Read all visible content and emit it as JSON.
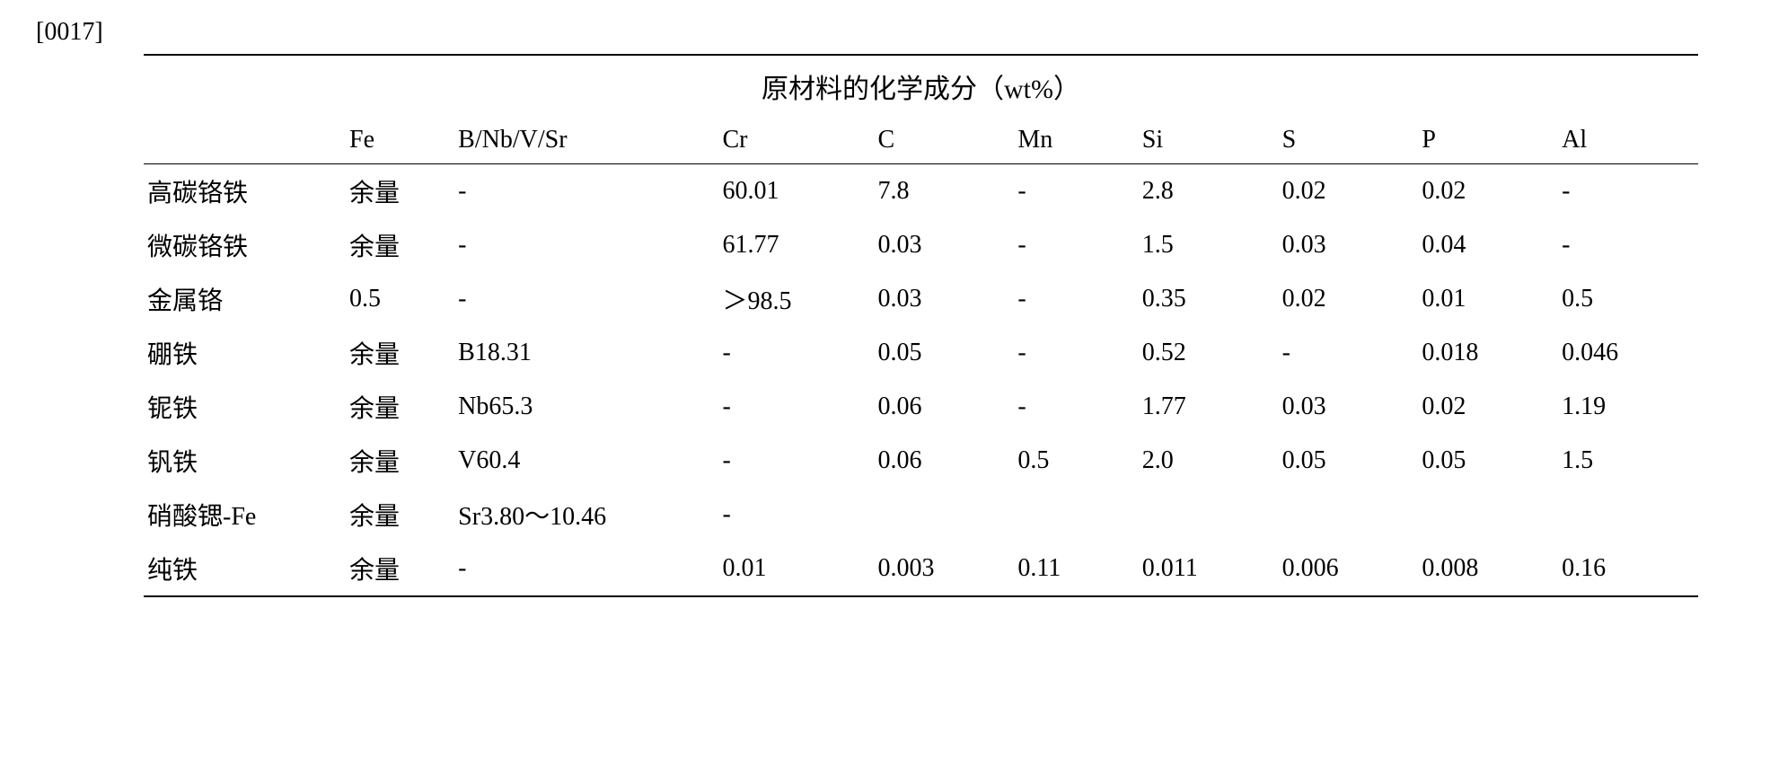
{
  "para_label": "[0017]",
  "table": {
    "title": "原材料的化学成分（wt%）",
    "headers": [
      "",
      "Fe",
      "B/Nb/V/Sr",
      "Cr",
      "C",
      "Mn",
      "Si",
      "S",
      "P",
      "Al"
    ],
    "rows": [
      {
        "name": "高碳铬铁",
        "fe": "余量",
        "b": "-",
        "cr": "60.01",
        "c": "7.8",
        "mn": "-",
        "si": "2.8",
        "s": "0.02",
        "p": "0.02",
        "al": "-"
      },
      {
        "name": "微碳铬铁",
        "fe": "余量",
        "b": "-",
        "cr": "61.77",
        "c": "0.03",
        "mn": "-",
        "si": "1.5",
        "s": "0.03",
        "p": "0.04",
        "al": "-"
      },
      {
        "name": "金属铬",
        "fe": "0.5",
        "b": "-",
        "cr": "＞98.5",
        "c": "0.03",
        "mn": "-",
        "si": "0.35",
        "s": "0.02",
        "p": "0.01",
        "al": "0.5"
      },
      {
        "name": "硼铁",
        "fe": "余量",
        "b": "B18.31",
        "cr": "-",
        "c": "0.05",
        "mn": "-",
        "si": "0.52",
        "s": "-",
        "p": "0.018",
        "al": "0.046"
      },
      {
        "name": "铌铁",
        "fe": "余量",
        "b": "Nb65.3",
        "cr": "-",
        "c": "0.06",
        "mn": "-",
        "si": "1.77",
        "s": "0.03",
        "p": "0.02",
        "al": "1.19"
      },
      {
        "name": "钒铁",
        "fe": "余量",
        "b": "V60.4",
        "cr": "-",
        "c": "0.06",
        "mn": "0.5",
        "si": "2.0",
        "s": "0.05",
        "p": "0.05",
        "al": "1.5"
      },
      {
        "name": "硝酸锶-Fe",
        "fe": "余量",
        "b": "Sr3.80～10.46",
        "cr": "-",
        "c": "",
        "mn": "",
        "si": "",
        "s": "",
        "p": "",
        "al": ""
      },
      {
        "name": "纯铁",
        "fe": "余量",
        "b": "-",
        "cr": "0.01",
        "c": "0.003",
        "mn": "0.11",
        "si": "0.011",
        "s": "0.006",
        "p": "0.008",
        "al": "0.16"
      }
    ],
    "colors": {
      "text": "#000000",
      "background": "#ffffff",
      "border": "#000000"
    },
    "font_size_body": 28,
    "font_size_title": 30
  }
}
